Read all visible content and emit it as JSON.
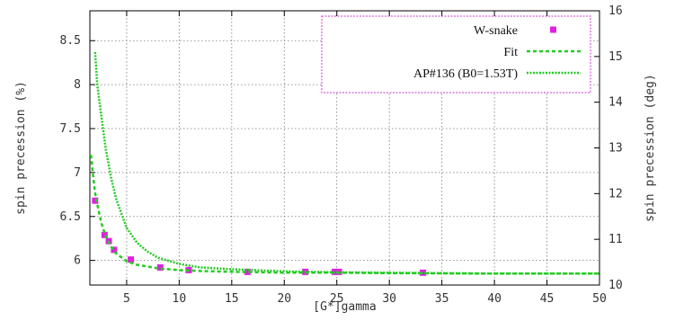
{
  "chart_data": {
    "type": "scatter",
    "xlabel": "[G*]gamma",
    "ylabel_left": "spin precession (%)",
    "ylabel_right": "spin precession (deg)",
    "xlim": [
      1.5,
      50
    ],
    "ylim_left": [
      5.72,
      8.84
    ],
    "ylim_right": [
      10,
      16
    ],
    "x_ticks": [
      "5",
      "10",
      "15",
      "20",
      "25",
      "30",
      "35",
      "40",
      "45",
      "50"
    ],
    "y_ticks_left": [
      "6",
      "6.5",
      "7",
      "7.5",
      "8",
      "8.5"
    ],
    "y_ticks_right": [
      "10",
      "11",
      "12",
      "13",
      "14",
      "15",
      "16"
    ],
    "grid": true,
    "legend_position": "top-right",
    "colors": {
      "marker": "#e020e0",
      "fit": "#22cc22",
      "legend_border": "#cc33cc"
    },
    "series": [
      {
        "name": "W-snake",
        "kind": "points",
        "x": [
          2.0,
          2.9,
          3.3,
          3.8,
          5.4,
          8.2,
          10.9,
          16.5,
          22.0,
          24.8,
          25.2,
          33.2
        ],
        "y": [
          6.68,
          6.29,
          6.22,
          6.12,
          6.01,
          5.92,
          5.89,
          5.87,
          5.87,
          5.87,
          5.87,
          5.86
        ]
      },
      {
        "name": "Fit",
        "kind": "dashed",
        "x": [
          1.6,
          1.8,
          2.0,
          2.3,
          2.6,
          3.0,
          3.5,
          4.0,
          5.0,
          6.0,
          8.0,
          10.0,
          12.0,
          15.0,
          20.0,
          25.0,
          30.0,
          40.0,
          50.0
        ],
        "y": [
          7.2,
          6.97,
          6.77,
          6.58,
          6.42,
          6.28,
          6.16,
          6.08,
          5.99,
          5.95,
          5.91,
          5.89,
          5.88,
          5.87,
          5.86,
          5.86,
          5.855,
          5.85,
          5.85
        ]
      },
      {
        "name": "AP#136  (B0=1.53T)",
        "kind": "dotted",
        "x": [
          2.0,
          2.2,
          2.5,
          3.0,
          3.5,
          4.0,
          5.0,
          6.0,
          7.0,
          8.0,
          10.0,
          12.0,
          15.0,
          20.0,
          25.0,
          30.0,
          40.0,
          50.0
        ],
        "y": [
          8.37,
          8.0,
          7.72,
          7.28,
          6.95,
          6.7,
          6.37,
          6.2,
          6.1,
          6.03,
          5.96,
          5.92,
          5.9,
          5.875,
          5.865,
          5.86,
          5.85,
          5.85
        ]
      }
    ]
  }
}
